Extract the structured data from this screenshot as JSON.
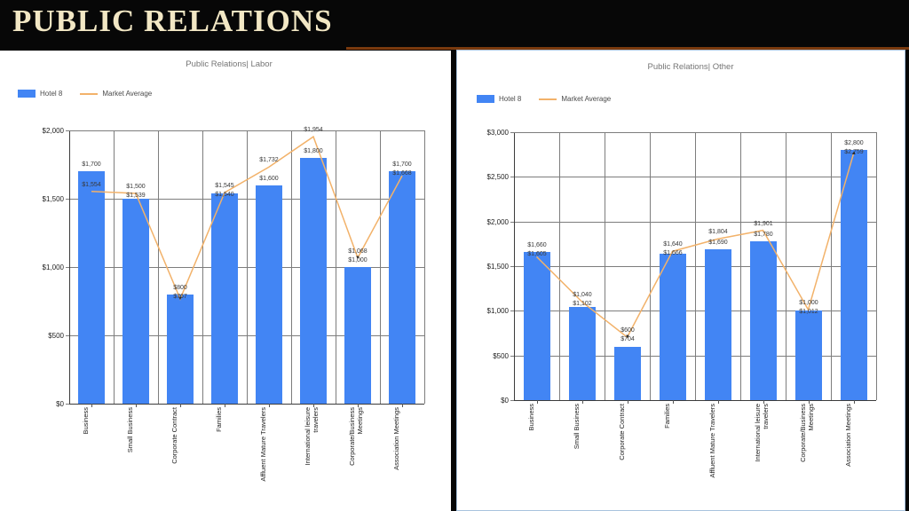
{
  "header": {
    "title": "PUBLIC RELATIONS"
  },
  "colors": {
    "bar": "#4285f4",
    "line": "#f2b26a",
    "marker": "#2b2b2b",
    "grid": "#7d7d7d",
    "panel_border": "#a9c3de",
    "accent_bar": "#7a3a0e",
    "header_text": "#f2e7c4",
    "chart_title_text": "#757575",
    "value_label_text": "#383838"
  },
  "chart_data": [
    {
      "type": "bar",
      "title": "Public Relations| Labor",
      "legend": [
        {
          "label": "Hotel 8",
          "type": "bar"
        },
        {
          "label": "Market Average",
          "type": "line"
        }
      ],
      "categories": [
        "Business",
        "Small Business",
        "Corporate Contract",
        "Families",
        "Affluent Mature Travelers",
        "International leisure travelers",
        "Corporate/Business Meetings",
        "Association Meetings"
      ],
      "series": [
        {
          "name": "Hotel 8",
          "type": "bar",
          "values": [
            1700,
            1500,
            800,
            1540,
            1600,
            1800,
            1000,
            1700
          ]
        },
        {
          "name": "Market Average",
          "type": "line",
          "values": [
            1554,
            1539,
            767,
            1545,
            1732,
            1954,
            1068,
            1668
          ]
        }
      ],
      "point_labels": [
        [
          "$1,700",
          "$1,554"
        ],
        [
          "$1,500",
          "$1,539"
        ],
        [
          "$800",
          "$767"
        ],
        [
          "$1,545",
          "$1,540"
        ],
        [
          "$1,732",
          "$1,600"
        ],
        [
          "$1,954",
          "$1,800"
        ],
        [
          "$1,068",
          "$1,000"
        ],
        [
          "$1,700",
          "$1,668"
        ]
      ],
      "markers": [
        {
          "index": 2,
          "glyph": "▼"
        },
        {
          "index": 6,
          "glyph": "▼"
        }
      ],
      "ylim": [
        0,
        2000
      ],
      "yticks": [
        {
          "value": 0,
          "label": "$0"
        },
        {
          "value": 500,
          "label": "$500"
        },
        {
          "value": 1000,
          "label": "$1,000"
        },
        {
          "value": 1500,
          "label": "$1,500"
        },
        {
          "value": 2000,
          "label": "$2,000"
        }
      ],
      "grid": "on",
      "legend_position": "top-left"
    },
    {
      "type": "bar",
      "title": "Public Relations| Other",
      "legend": [
        {
          "label": "Hotel 8",
          "type": "bar"
        },
        {
          "label": "Market Average",
          "type": "line"
        }
      ],
      "categories": [
        "Business",
        "Small Business",
        "Corporate Contract",
        "Families",
        "Affluent Mature Travelers",
        "International leisure travelers",
        "Corporate/Business Meetings",
        "Association Meetings"
      ],
      "series": [
        {
          "name": "Hotel 8",
          "type": "bar",
          "values": [
            1660,
            1040,
            600,
            1640,
            1690,
            1780,
            1000,
            2800
          ]
        },
        {
          "name": "Market Average",
          "type": "line",
          "values": [
            1605,
            1102,
            704,
            1666,
            1804,
            1901,
            1012,
            2759
          ]
        }
      ],
      "point_labels": [
        [
          "$1,660",
          "$1,605"
        ],
        [
          "$1,040",
          "$1,102"
        ],
        [
          "$600",
          "$704"
        ],
        [
          "$1,640",
          "$1,666"
        ],
        [
          "$1,804",
          "$1,690"
        ],
        [
          "$1,901",
          "$1,780"
        ],
        [
          "$1,000",
          "$1,012"
        ],
        [
          "$2,800",
          "$2,759"
        ]
      ],
      "markers": [
        {
          "index": 2,
          "glyph": "▼"
        },
        {
          "index": 7,
          "glyph": "▲"
        }
      ],
      "ylim": [
        0,
        3000
      ],
      "yticks": [
        {
          "value": 0,
          "label": "$0"
        },
        {
          "value": 500,
          "label": "$500"
        },
        {
          "value": 1000,
          "label": "$1,000"
        },
        {
          "value": 1500,
          "label": "$1,500"
        },
        {
          "value": 2000,
          "label": "$2,000"
        },
        {
          "value": 2500,
          "label": "$2,500"
        },
        {
          "value": 3000,
          "label": "$3,000"
        }
      ],
      "grid": "on",
      "legend_position": "top-left"
    }
  ]
}
